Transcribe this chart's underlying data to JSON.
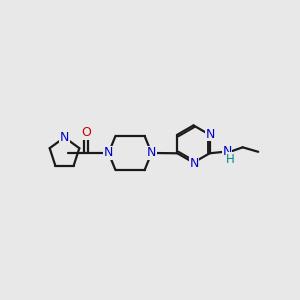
{
  "bg_color": "#e8e8e8",
  "bond_color": "#1a1a1a",
  "N_color": "#0000cc",
  "O_color": "#cc0000",
  "H_color": "#008888",
  "line_width": 1.6,
  "figsize": [
    3.0,
    3.0
  ],
  "dpi": 100,
  "xlim": [
    0.0,
    10.0
  ],
  "ylim": [
    3.5,
    8.0
  ]
}
